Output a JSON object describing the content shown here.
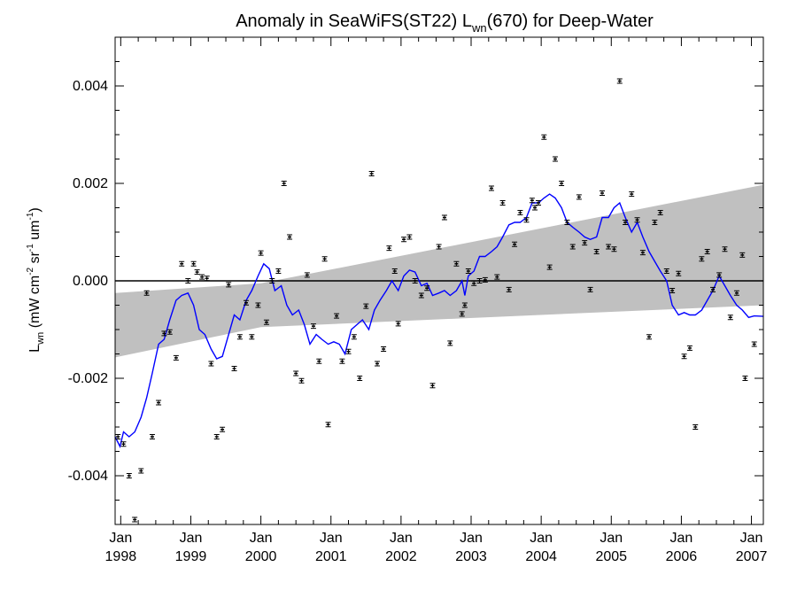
{
  "chart_data": {
    "type": "scatter",
    "title": {
      "prefix": "Anomaly in SeaWiFS(ST22) L",
      "sub": "wn",
      "suffix": "(670) for Deep-Water"
    },
    "ylabel": {
      "main": "L",
      "sub": "wn",
      "units_open": " (mW cm",
      "units_exp1": "-2",
      "units_mid1": " sr",
      "units_exp2": "-1",
      "units_mid2": " um",
      "units_exp3": "-1",
      "units_close": ")"
    },
    "xlim": [
      1997.92,
      2007.17
    ],
    "ylim": [
      -0.005,
      0.005
    ],
    "x_ticks": [
      {
        "value": 1998,
        "month": "Jan",
        "year": "1998"
      },
      {
        "value": 1999,
        "month": "Jan",
        "year": "1999"
      },
      {
        "value": 2000,
        "month": "Jan",
        "year": "2000"
      },
      {
        "value": 2001,
        "month": "Jan",
        "year": "2001"
      },
      {
        "value": 2002,
        "month": "Jan",
        "year": "2002"
      },
      {
        "value": 2003,
        "month": "Jan",
        "year": "2003"
      },
      {
        "value": 2004,
        "month": "Jan",
        "year": "2004"
      },
      {
        "value": 2005,
        "month": "Jan",
        "year": "2005"
      },
      {
        "value": 2006,
        "month": "Jan",
        "year": "2006"
      },
      {
        "value": 2007,
        "month": "Jan",
        "year": "2007"
      }
    ],
    "y_ticks": [
      {
        "value": -0.004,
        "label": "-0.004"
      },
      {
        "value": -0.002,
        "label": "-0.002"
      },
      {
        "value": 0.0,
        "label": "0.000"
      },
      {
        "value": 0.002,
        "label": "0.002"
      },
      {
        "value": 0.004,
        "label": "0.004"
      }
    ],
    "zero_line": 0.0,
    "confidence_band": {
      "x": [
        1997.92,
        2000.0,
        2007.17
      ],
      "upper": [
        -0.00025,
        -5e-05,
        0.00197
      ],
      "lower": [
        -0.00157,
        -0.00095,
        -0.0005
      ]
    },
    "colors": {
      "points": "#000000",
      "smooth_line": "#0000ff",
      "band": "#c0c0c0"
    },
    "points": [
      {
        "x": 1997.96,
        "y": -0.0032
      },
      {
        "x": 1998.04,
        "y": -0.00335
      },
      {
        "x": 1998.12,
        "y": -0.004
      },
      {
        "x": 1998.2,
        "y": -0.0049
      },
      {
        "x": 1998.29,
        "y": -0.0039
      },
      {
        "x": 1998.37,
        "y": -0.00025
      },
      {
        "x": 1998.45,
        "y": -0.0032
      },
      {
        "x": 1998.54,
        "y": -0.0025
      },
      {
        "x": 1998.62,
        "y": -0.00108
      },
      {
        "x": 1998.7,
        "y": -0.00105
      },
      {
        "x": 1998.79,
        "y": -0.00158
      },
      {
        "x": 1998.87,
        "y": 0.00035
      },
      {
        "x": 1998.96,
        "y": 0.0
      },
      {
        "x": 1999.04,
        "y": 0.00035
      },
      {
        "x": 1999.09,
        "y": 0.00018
      },
      {
        "x": 1999.16,
        "y": 8e-05
      },
      {
        "x": 1999.23,
        "y": 5e-05
      },
      {
        "x": 1999.29,
        "y": -0.0017
      },
      {
        "x": 1999.37,
        "y": -0.0032
      },
      {
        "x": 1999.45,
        "y": -0.00305
      },
      {
        "x": 1999.54,
        "y": -8e-05
      },
      {
        "x": 1999.62,
        "y": -0.0018
      },
      {
        "x": 1999.7,
        "y": -0.00115
      },
      {
        "x": 1999.79,
        "y": -0.00045
      },
      {
        "x": 1999.87,
        "y": -0.00115
      },
      {
        "x": 1999.96,
        "y": -0.0005
      },
      {
        "x": 2000.0,
        "y": 0.00057
      },
      {
        "x": 2000.08,
        "y": -0.00085
      },
      {
        "x": 2000.16,
        "y": 0.0
      },
      {
        "x": 2000.25,
        "y": 0.0002
      },
      {
        "x": 2000.33,
        "y": 0.002
      },
      {
        "x": 2000.41,
        "y": 0.0009
      },
      {
        "x": 2000.5,
        "y": -0.0019
      },
      {
        "x": 2000.58,
        "y": -0.00205
      },
      {
        "x": 2000.66,
        "y": 0.00012
      },
      {
        "x": 2000.75,
        "y": -0.00093
      },
      {
        "x": 2000.83,
        "y": -0.00165
      },
      {
        "x": 2000.91,
        "y": 0.00045
      },
      {
        "x": 2000.96,
        "y": -0.00295
      },
      {
        "x": 2001.08,
        "y": -0.00072
      },
      {
        "x": 2001.16,
        "y": -0.00165
      },
      {
        "x": 2001.25,
        "y": -0.00145
      },
      {
        "x": 2001.33,
        "y": -0.00115
      },
      {
        "x": 2001.41,
        "y": -0.002
      },
      {
        "x": 2001.5,
        "y": -0.00052
      },
      {
        "x": 2001.58,
        "y": 0.0022
      },
      {
        "x": 2001.66,
        "y": -0.0017
      },
      {
        "x": 2001.75,
        "y": -0.0014
      },
      {
        "x": 2001.83,
        "y": 0.00067
      },
      {
        "x": 2001.91,
        "y": 0.0002
      },
      {
        "x": 2001.96,
        "y": -0.00088
      },
      {
        "x": 2002.04,
        "y": 0.00085
      },
      {
        "x": 2002.12,
        "y": 0.0009
      },
      {
        "x": 2002.2,
        "y": 0.0
      },
      {
        "x": 2002.29,
        "y": -0.0003
      },
      {
        "x": 2002.37,
        "y": -0.00015
      },
      {
        "x": 2002.45,
        "y": -0.00215
      },
      {
        "x": 2002.54,
        "y": 0.0007
      },
      {
        "x": 2002.62,
        "y": 0.0013
      },
      {
        "x": 2002.7,
        "y": -0.00128
      },
      {
        "x": 2002.79,
        "y": 0.00035
      },
      {
        "x": 2002.87,
        "y": -0.00068
      },
      {
        "x": 2002.91,
        "y": -0.0005
      },
      {
        "x": 2002.96,
        "y": 0.0002
      },
      {
        "x": 2003.04,
        "y": -5e-05
      },
      {
        "x": 2003.12,
        "y": 0.0
      },
      {
        "x": 2003.2,
        "y": 2e-05
      },
      {
        "x": 2003.29,
        "y": 0.0019
      },
      {
        "x": 2003.37,
        "y": 8e-05
      },
      {
        "x": 2003.45,
        "y": 0.0016
      },
      {
        "x": 2003.54,
        "y": -0.00018
      },
      {
        "x": 2003.62,
        "y": 0.00075
      },
      {
        "x": 2003.7,
        "y": 0.0014
      },
      {
        "x": 2003.79,
        "y": 0.00125
      },
      {
        "x": 2003.87,
        "y": 0.00165
      },
      {
        "x": 2003.91,
        "y": 0.0015
      },
      {
        "x": 2003.96,
        "y": 0.0016
      },
      {
        "x": 2004.04,
        "y": 0.00295
      },
      {
        "x": 2004.12,
        "y": 0.00028
      },
      {
        "x": 2004.2,
        "y": 0.0025
      },
      {
        "x": 2004.29,
        "y": 0.002
      },
      {
        "x": 2004.37,
        "y": 0.0012
      },
      {
        "x": 2004.45,
        "y": 0.0007
      },
      {
        "x": 2004.54,
        "y": 0.00172
      },
      {
        "x": 2004.62,
        "y": 0.00078
      },
      {
        "x": 2004.7,
        "y": -0.00018
      },
      {
        "x": 2004.79,
        "y": 0.0006
      },
      {
        "x": 2004.87,
        "y": 0.0018
      },
      {
        "x": 2004.96,
        "y": 0.0007
      },
      {
        "x": 2005.04,
        "y": 0.00065
      },
      {
        "x": 2005.12,
        "y": 0.0041
      },
      {
        "x": 2005.2,
        "y": 0.0012
      },
      {
        "x": 2005.29,
        "y": 0.00178
      },
      {
        "x": 2005.37,
        "y": 0.00125
      },
      {
        "x": 2005.45,
        "y": 0.00058
      },
      {
        "x": 2005.54,
        "y": -0.00115
      },
      {
        "x": 2005.62,
        "y": 0.0012
      },
      {
        "x": 2005.7,
        "y": 0.0014
      },
      {
        "x": 2005.79,
        "y": 0.0002
      },
      {
        "x": 2005.87,
        "y": -0.0002
      },
      {
        "x": 2005.96,
        "y": 0.00015
      },
      {
        "x": 2006.04,
        "y": -0.00155
      },
      {
        "x": 2006.12,
        "y": -0.00138
      },
      {
        "x": 2006.2,
        "y": -0.003
      },
      {
        "x": 2006.29,
        "y": 0.00045
      },
      {
        "x": 2006.37,
        "y": 0.0006
      },
      {
        "x": 2006.45,
        "y": -0.00018
      },
      {
        "x": 2006.54,
        "y": 0.00012
      },
      {
        "x": 2006.62,
        "y": 0.00065
      },
      {
        "x": 2006.7,
        "y": -0.00075
      },
      {
        "x": 2006.79,
        "y": -0.00025
      },
      {
        "x": 2006.87,
        "y": 0.00053
      },
      {
        "x": 2006.91,
        "y": -0.002
      },
      {
        "x": 2007.04,
        "y": -0.0013
      }
    ],
    "smooth_line": [
      [
        1997.92,
        -0.0032
      ],
      [
        1997.99,
        -0.0034
      ],
      [
        1998.04,
        -0.0031
      ],
      [
        1998.12,
        -0.0032
      ],
      [
        1998.2,
        -0.0031
      ],
      [
        1998.29,
        -0.0028
      ],
      [
        1998.37,
        -0.0024
      ],
      [
        1998.45,
        -0.0019
      ],
      [
        1998.54,
        -0.0013
      ],
      [
        1998.62,
        -0.0012
      ],
      [
        1998.7,
        -0.0008
      ],
      [
        1998.79,
        -0.0004
      ],
      [
        1998.87,
        -0.0003
      ],
      [
        1998.96,
        -0.00025
      ],
      [
        1999.04,
        -0.0005
      ],
      [
        1999.12,
        -0.001
      ],
      [
        1999.2,
        -0.0011
      ],
      [
        1999.29,
        -0.0014
      ],
      [
        1999.37,
        -0.0016
      ],
      [
        1999.45,
        -0.00155
      ],
      [
        1999.54,
        -0.0011
      ],
      [
        1999.62,
        -0.0007
      ],
      [
        1999.7,
        -0.0008
      ],
      [
        1999.79,
        -0.0004
      ],
      [
        1999.87,
        -0.0002
      ],
      [
        1999.96,
        0.0001
      ],
      [
        2000.04,
        0.00035
      ],
      [
        2000.12,
        0.00025
      ],
      [
        2000.2,
        -0.0002
      ],
      [
        2000.29,
        -0.0001
      ],
      [
        2000.37,
        -0.0005
      ],
      [
        2000.45,
        -0.0007
      ],
      [
        2000.54,
        -0.0006
      ],
      [
        2000.62,
        -0.0009
      ],
      [
        2000.7,
        -0.0013
      ],
      [
        2000.79,
        -0.0011
      ],
      [
        2000.87,
        -0.0012
      ],
      [
        2000.96,
        -0.0013
      ],
      [
        2001.04,
        -0.00125
      ],
      [
        2001.12,
        -0.0013
      ],
      [
        2001.2,
        -0.0015
      ],
      [
        2001.29,
        -0.001
      ],
      [
        2001.37,
        -0.0009
      ],
      [
        2001.45,
        -0.0008
      ],
      [
        2001.54,
        -0.001
      ],
      [
        2001.62,
        -0.0006
      ],
      [
        2001.7,
        -0.0004
      ],
      [
        2001.79,
        -0.0002
      ],
      [
        2001.87,
        0.0
      ],
      [
        2001.96,
        -0.0002
      ],
      [
        2002.04,
        0.0001
      ],
      [
        2002.12,
        0.00022
      ],
      [
        2002.2,
        0.00018
      ],
      [
        2002.29,
        -0.0001
      ],
      [
        2002.37,
        -5e-05
      ],
      [
        2002.45,
        -0.0003
      ],
      [
        2002.54,
        -0.00025
      ],
      [
        2002.62,
        -0.0002
      ],
      [
        2002.7,
        -0.0003
      ],
      [
        2002.79,
        -0.0002
      ],
      [
        2002.87,
        0.0
      ],
      [
        2002.91,
        -0.0003
      ],
      [
        2002.96,
        0.0001
      ],
      [
        2003.04,
        0.0002
      ],
      [
        2003.12,
        0.0005
      ],
      [
        2003.2,
        0.0005
      ],
      [
        2003.29,
        0.0006
      ],
      [
        2003.37,
        0.0007
      ],
      [
        2003.45,
        0.0009
      ],
      [
        2003.54,
        0.00115
      ],
      [
        2003.62,
        0.0012
      ],
      [
        2003.7,
        0.0012
      ],
      [
        2003.79,
        0.0013
      ],
      [
        2003.87,
        0.0016
      ],
      [
        2003.96,
        0.0016
      ],
      [
        2004.04,
        0.0017
      ],
      [
        2004.12,
        0.00178
      ],
      [
        2004.2,
        0.0017
      ],
      [
        2004.29,
        0.0015
      ],
      [
        2004.37,
        0.0012
      ],
      [
        2004.45,
        0.0011
      ],
      [
        2004.54,
        0.001
      ],
      [
        2004.62,
        0.0009
      ],
      [
        2004.7,
        0.00085
      ],
      [
        2004.79,
        0.0009
      ],
      [
        2004.87,
        0.0013
      ],
      [
        2004.96,
        0.0013
      ],
      [
        2005.04,
        0.0015
      ],
      [
        2005.12,
        0.0016
      ],
      [
        2005.2,
        0.0013
      ],
      [
        2005.29,
        0.001
      ],
      [
        2005.37,
        0.0012
      ],
      [
        2005.45,
        0.0009
      ],
      [
        2005.54,
        0.0006
      ],
      [
        2005.62,
        0.0004
      ],
      [
        2005.7,
        0.0002
      ],
      [
        2005.79,
        0.0
      ],
      [
        2005.87,
        -0.0005
      ],
      [
        2005.96,
        -0.0007
      ],
      [
        2006.04,
        -0.00065
      ],
      [
        2006.12,
        -0.0007
      ],
      [
        2006.2,
        -0.0007
      ],
      [
        2006.29,
        -0.0006
      ],
      [
        2006.37,
        -0.0004
      ],
      [
        2006.45,
        -0.0002
      ],
      [
        2006.54,
        0.0001
      ],
      [
        2006.62,
        -0.0001
      ],
      [
        2006.7,
        -0.0003
      ],
      [
        2006.79,
        -0.0005
      ],
      [
        2006.87,
        -0.0006
      ],
      [
        2006.96,
        -0.00075
      ],
      [
        2007.04,
        -0.00072
      ],
      [
        2007.17,
        -0.00073
      ]
    ]
  }
}
